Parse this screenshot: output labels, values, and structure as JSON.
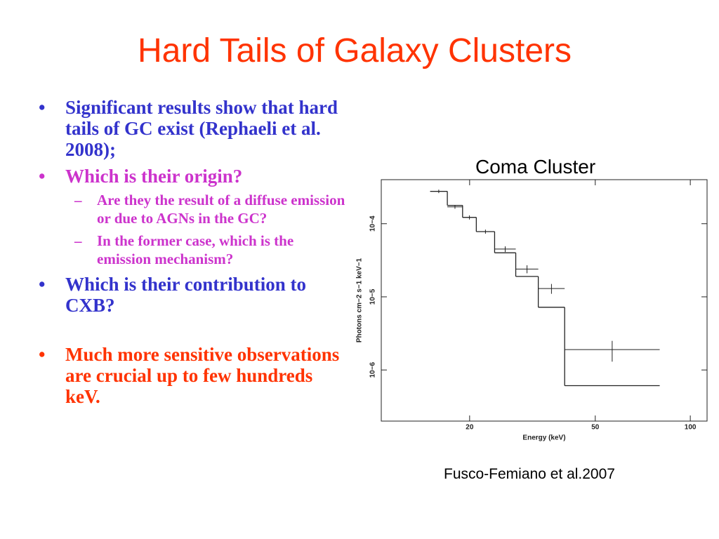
{
  "title": "Hard Tails of Galaxy Clusters",
  "bullets": [
    {
      "text": "Significant results show that  hard tails of GC exist (Rephaeli et al. 2008);"
    },
    {
      "text": "Which is their origin?",
      "sub": [
        "Are they the result of a diffuse emission or due to AGNs in the GC?",
        "In the former case, which is the emission mechanism?"
      ]
    },
    {
      "text": "Which is their contribution to CXB?"
    },
    {
      "text": "Much more sensitive observations are crucial up to few hundreds keV."
    }
  ],
  "figure_title": "Coma Cluster",
  "caption": "Fusco-Femiano et al.2007",
  "chart_data": {
    "type": "step",
    "x_label": "Energy (keV)",
    "y_label": "Photons cm−2 s−1 keV−1",
    "xscale": "log",
    "yscale": "log",
    "xlim": [
      10.5,
      113
    ],
    "ylim": [
      2e-07,
      0.0004
    ],
    "xticks": [
      20,
      50,
      100
    ],
    "yticks": [
      {
        "value": 0.0001,
        "label": "10−4"
      },
      {
        "value": 1e-05,
        "label": "10−5"
      },
      {
        "value": 1e-06,
        "label": "10−6"
      }
    ],
    "bins": [
      15,
      17,
      19,
      21,
      24,
      28,
      33,
      40,
      80
    ],
    "model": [
      0.000277,
      0.000178,
      0.000122,
      7.8e-05,
      4e-05,
      1.9e-05,
      7.2e-06,
      6.1e-07
    ],
    "data": [
      0.000277,
      0.00017,
      0.000122,
      7.8e-05,
      4.5e-05,
      2.4e-05,
      1.3e-05,
      1.9e-06
    ],
    "errors": [
      1.5e-05,
      1e-05,
      8e-06,
      5e-06,
      4e-06,
      3e-06,
      2e-06,
      6e-07
    ],
    "color": "#222222"
  }
}
